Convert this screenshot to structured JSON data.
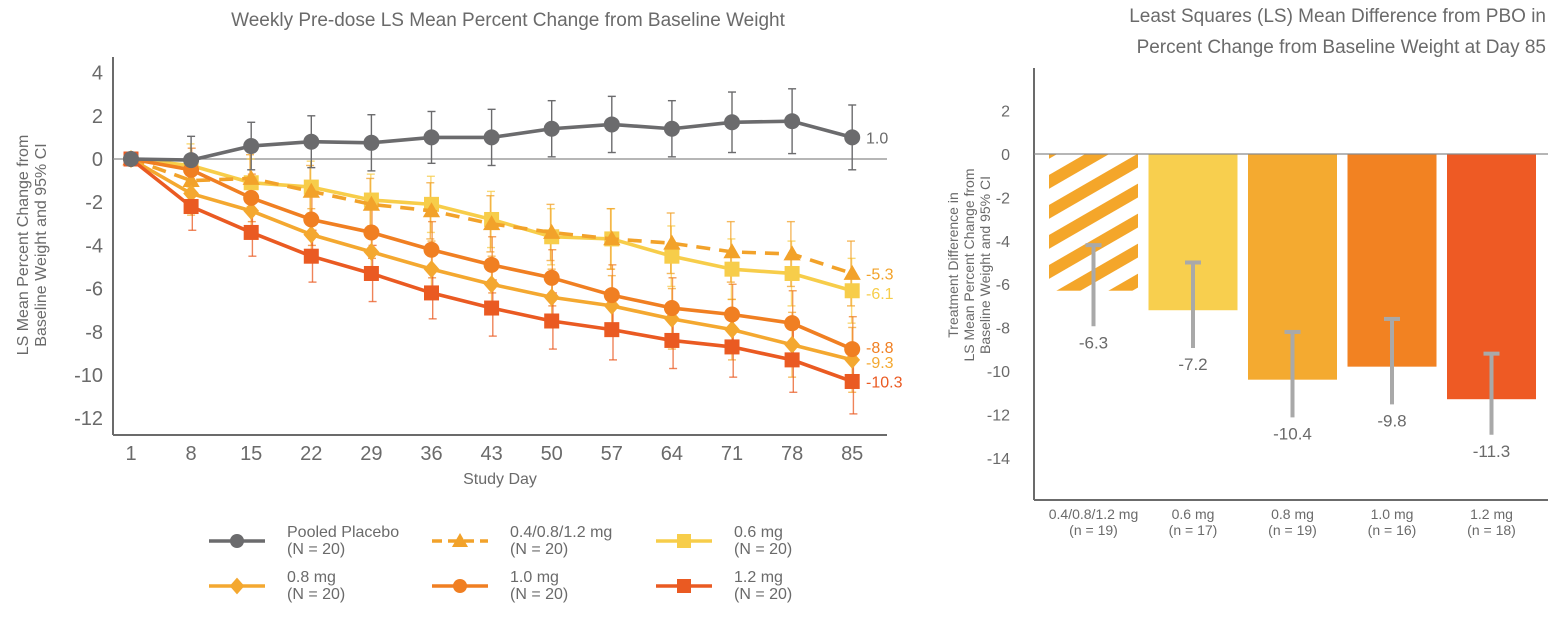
{
  "chart_data": [
    {
      "type": "line",
      "title": "Weekly Pre-dose LS Mean Percent Change from Baseline Weight",
      "xlabel": "Study Day",
      "ylabel": "LS Mean Percent Change from Baseline Weight and 95% CI",
      "ylabel_lines": [
        "LS Mean Percent Change from",
        "Baseline Weight and 95% CI"
      ],
      "x": [
        1,
        8,
        15,
        22,
        29,
        36,
        43,
        50,
        57,
        64,
        71,
        78,
        85
      ],
      "x_tick_labels": [
        "1",
        "8",
        "15",
        "22",
        "29",
        "36",
        "43",
        "50",
        "57",
        "64",
        "71",
        "78",
        "85"
      ],
      "ylim": [
        -13,
        4.5
      ],
      "y_ticks": [
        4,
        2,
        0,
        -2,
        -4,
        -6,
        -8,
        -10,
        -12
      ],
      "y_tick_labels": [
        "4",
        "2",
        "0",
        "-2",
        "-4",
        "-6",
        "-8",
        "-10",
        "-12"
      ],
      "reference_line": 0,
      "grid": false,
      "legend_position": "bottom",
      "series": [
        {
          "name": "Pooled Placebo",
          "n_label": "(N = 20)",
          "color": "#6b6b6d",
          "marker": "circle",
          "dashed": false,
          "values": [
            0,
            -0.05,
            0.6,
            0.8,
            0.75,
            1.0,
            1.0,
            1.4,
            1.6,
            1.4,
            1.7,
            1.75,
            1.0
          ],
          "ci_half": [
            0,
            1.1,
            1.1,
            1.2,
            1.3,
            1.2,
            1.3,
            1.3,
            1.3,
            1.3,
            1.4,
            1.5,
            1.5
          ],
          "end_label": "1.0"
        },
        {
          "name": "0.4/0.8/1.2 mg",
          "n_label": "(N = 20)",
          "color": "#f2a22a",
          "marker": "triangle",
          "dashed": true,
          "values": [
            0,
            -1.0,
            -0.9,
            -1.5,
            -2.1,
            -2.4,
            -3.0,
            -3.4,
            -3.7,
            -3.9,
            -4.3,
            -4.4,
            -5.3
          ],
          "ci_half": [
            0,
            1.0,
            1.1,
            1.2,
            1.2,
            1.3,
            1.3,
            1.3,
            1.4,
            1.4,
            1.4,
            1.5,
            1.5
          ],
          "end_label": "-5.3"
        },
        {
          "name": "0.6 mg",
          "n_label": "(N = 20)",
          "color": "#f7cd4a",
          "marker": "square",
          "dashed": false,
          "values": [
            0,
            -0.3,
            -1.1,
            -1.3,
            -1.9,
            -2.1,
            -2.8,
            -3.6,
            -3.7,
            -4.5,
            -5.1,
            -5.3,
            -6.1
          ],
          "ci_half": [
            0,
            1.0,
            1.1,
            1.2,
            1.2,
            1.3,
            1.3,
            1.3,
            1.4,
            1.4,
            1.4,
            1.5,
            1.5
          ],
          "end_label": "-6.1"
        },
        {
          "name": "0.8 mg",
          "n_label": "(N = 20)",
          "color": "#f4a830",
          "marker": "diamond",
          "dashed": false,
          "values": [
            0,
            -1.6,
            -2.4,
            -3.5,
            -4.3,
            -5.1,
            -5.8,
            -6.4,
            -6.8,
            -7.4,
            -7.9,
            -8.6,
            -9.3
          ],
          "ci_half": [
            0,
            1.0,
            1.1,
            1.2,
            1.2,
            1.3,
            1.3,
            1.3,
            1.4,
            1.4,
            1.4,
            1.5,
            1.5
          ],
          "end_label": "-9.3"
        },
        {
          "name": "1.0 mg",
          "n_label": "(N = 20)",
          "color": "#f07f22",
          "marker": "circle",
          "dashed": false,
          "values": [
            0,
            -0.5,
            -1.8,
            -2.8,
            -3.4,
            -4.2,
            -4.9,
            -5.5,
            -6.3,
            -6.9,
            -7.2,
            -7.6,
            -8.8
          ],
          "ci_half": [
            0,
            1.0,
            1.1,
            1.2,
            1.2,
            1.3,
            1.3,
            1.3,
            1.4,
            1.4,
            1.4,
            1.5,
            1.5
          ],
          "end_label": "-8.8"
        },
        {
          "name": "1.2 mg",
          "n_label": "(N = 20)",
          "color": "#ea5a22",
          "marker": "square",
          "dashed": false,
          "values": [
            0,
            -2.2,
            -3.4,
            -4.5,
            -5.3,
            -6.2,
            -6.9,
            -7.5,
            -7.9,
            -8.4,
            -8.7,
            -9.3,
            -10.3
          ],
          "ci_half": [
            0,
            1.1,
            1.1,
            1.2,
            1.3,
            1.2,
            1.3,
            1.3,
            1.4,
            1.3,
            1.4,
            1.5,
            1.5
          ],
          "end_label": "-10.3"
        }
      ]
    },
    {
      "type": "bar",
      "title_lines": [
        "Least Squares (LS) Mean Difference from PBO in",
        "Percent Change from Baseline Weight at Day 85"
      ],
      "title": "Least Squares (LS) Mean Difference from PBO in Percent Change from Baseline Weight at Day 85",
      "xlabel": "",
      "ylabel": "Treatment Difference in LS Mean Percent Change from Baseline Weight and 95% CI",
      "ylabel_lines": [
        "Treatment Difference in",
        "LS Mean Percent Change from",
        "Baseline Weight and 95% CI"
      ],
      "ylim": [
        -16,
        4
      ],
      "y_ticks": [
        2,
        0,
        -2,
        -4,
        -6,
        -8,
        -10,
        -12,
        -14
      ],
      "y_tick_labels": [
        "2",
        "0",
        "-2",
        "-4",
        "-6",
        "-8",
        "-10",
        "-12",
        "-14"
      ],
      "grid": false,
      "categories": [
        "0.4/0.8/1.2 mg",
        "0.6 mg",
        "0.8 mg",
        "1.0 mg",
        "1.2 mg"
      ],
      "category_n": [
        "(n = 19)",
        "(n = 17)",
        "(n = 19)",
        "(n = 16)",
        "(n = 18)"
      ],
      "values": [
        -6.3,
        -7.2,
        -10.4,
        -9.8,
        -11.3
      ],
      "value_labels": [
        "-6.3",
        "-7.2",
        "-10.4",
        "-9.8",
        "-11.3"
      ],
      "ci_upper": [
        -4.2,
        -5.0,
        -8.2,
        -7.6,
        -9.2
      ],
      "ci_lower": [
        -8.4,
        -9.4,
        -12.6,
        -12.0,
        -13.4
      ],
      "colors": [
        "#f4a62a",
        "#f8cf4e",
        "#f4aa30",
        "#f28222",
        "#ee5a24"
      ],
      "hatched": [
        true,
        false,
        false,
        false,
        false
      ]
    }
  ]
}
